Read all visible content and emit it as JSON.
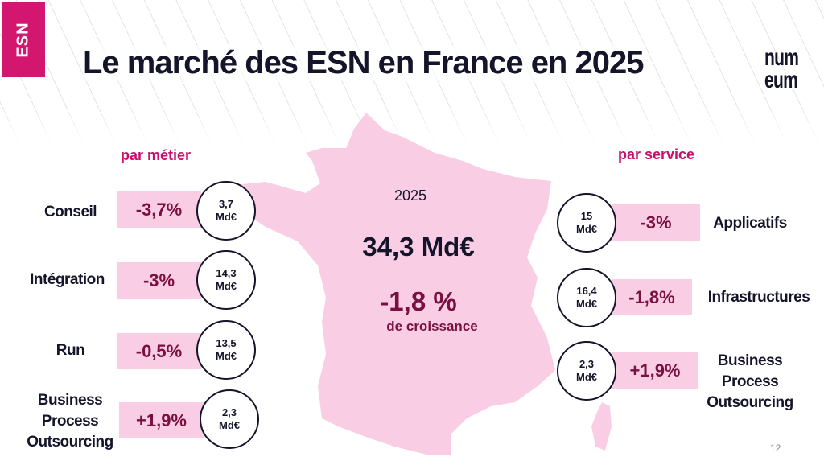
{
  "tab_label": "ESN",
  "title": "Le marché des ESN en France en 2025",
  "logo_text": [
    "num",
    "eum"
  ],
  "colors": {
    "accent": "#d3166f",
    "heading": "#c8106a",
    "value": "#7a1040",
    "pink": "#f9cde3",
    "text": "#14142a"
  },
  "center": {
    "year": "2025",
    "total": "34,3 Md€",
    "growth": "-1,8 %",
    "growth_label": "de croissance"
  },
  "par_metier": {
    "heading": "par métier",
    "items": [
      {
        "label": "Conseil",
        "change": "-3,7%",
        "value": "3,7",
        "unit": "Md€"
      },
      {
        "label": "Intégration",
        "change": "-3%",
        "value": "14,3",
        "unit": "Md€"
      },
      {
        "label": "Run",
        "change": "-0,5%",
        "value": "13,5",
        "unit": "Md€"
      },
      {
        "label": "Business Process Outsourcing",
        "change": "+1,9%",
        "value": "2,3",
        "unit": "Md€"
      }
    ]
  },
  "par_service": {
    "heading": "par service",
    "items": [
      {
        "label": "Applicatifs",
        "change": "-3%",
        "value": "15",
        "unit": "Md€"
      },
      {
        "label": "Infrastructures",
        "change": "-1,8%",
        "value": "16,4",
        "unit": "Md€"
      },
      {
        "label": "Business Process Outsourcing",
        "change": "+1,9%",
        "value": "2,3",
        "unit": "Md€"
      }
    ]
  },
  "page_number": "12"
}
